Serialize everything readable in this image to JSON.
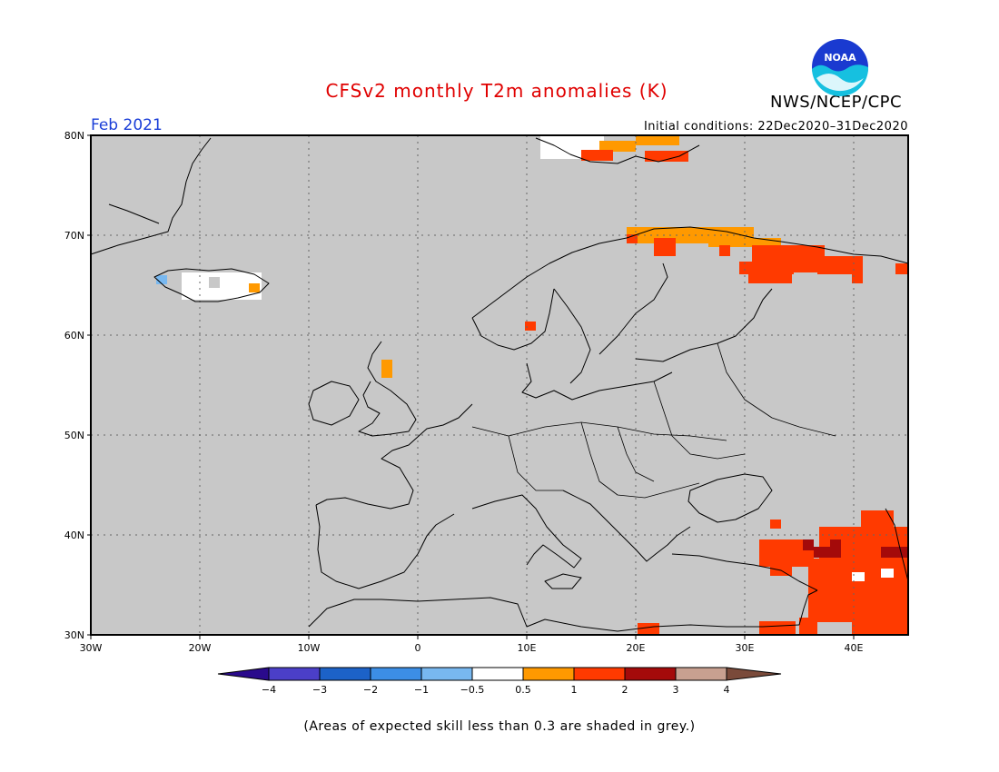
{
  "title": "CFSv2 monthly T2m anomalies (K)",
  "valid_month": "Feb 2021",
  "initial_conditions": "Initial conditions: 22Dec2020–31Dec2020",
  "organization": "NWS/NCEP/CPC",
  "logo_icon": "noaa-logo-icon",
  "logo_text": "NOAA",
  "caption": "(Areas of expected skill less than 0.3 are shaded in grey.)",
  "map": {
    "lon_range": [
      -30,
      45
    ],
    "lat_range": [
      30,
      80
    ],
    "background_color": "#c8c8c8",
    "grid": true,
    "lat_ticks": [
      "30N",
      "40N",
      "50N",
      "60N",
      "70N",
      "80N"
    ],
    "lon_ticks": [
      "30W",
      "20W",
      "10W",
      "0",
      "10E",
      "20E",
      "30E",
      "40E"
    ]
  },
  "legend": {
    "tick_labels": [
      "−4",
      "−3",
      "−2",
      "−1",
      "−0.5",
      "0.5",
      "1",
      "2",
      "3",
      "4"
    ],
    "colors": [
      "#2a0a8c",
      "#4b3fc8",
      "#1c62c8",
      "#3c8ee6",
      "#78b8f0",
      "#ffffff",
      "#ff9900",
      "#ff3a00",
      "#a40a0a",
      "#c8a090",
      "#7a4a3a"
    ]
  },
  "anomaly_regions": [
    {
      "name": "svalbard",
      "category": "0.5 to 1",
      "color": "#ff9900"
    },
    {
      "name": "svalbard-core",
      "category": "1 to 2",
      "color": "#ff3a00"
    },
    {
      "name": "northern-scandinavia",
      "category": "0.5 to 1",
      "color": "#ff9900"
    },
    {
      "name": "kola-northwest-russia",
      "category": "1 to 2",
      "color": "#ff3a00"
    },
    {
      "name": "scotland",
      "category": "0.5 to 1",
      "color": "#ff9900"
    },
    {
      "name": "southern-norway-cell",
      "category": "1 to 2",
      "color": "#ff3a00"
    },
    {
      "name": "turkey-levant",
      "category": "1 to 2",
      "color": "#ff3a00"
    },
    {
      "name": "eastern-turkey-core",
      "category": "2 to 3",
      "color": "#a40a0a"
    },
    {
      "name": "iceland",
      "category": "-0.5 to 0.5",
      "color": "#ffffff"
    }
  ]
}
